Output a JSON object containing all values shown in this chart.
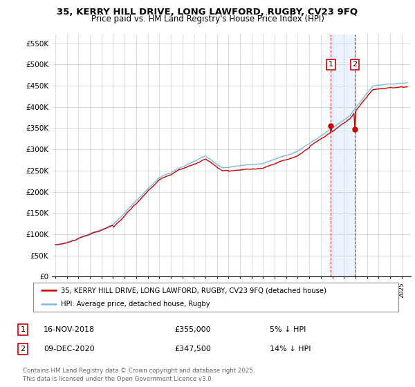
{
  "title_line1": "35, KERRY HILL DRIVE, LONG LAWFORD, RUGBY, CV23 9FQ",
  "title_line2": "Price paid vs. HM Land Registry's House Price Index (HPI)",
  "ylabel_ticks": [
    "£0",
    "£50K",
    "£100K",
    "£150K",
    "£200K",
    "£250K",
    "£300K",
    "£350K",
    "£400K",
    "£450K",
    "£500K",
    "£550K"
  ],
  "ytick_values": [
    0,
    50000,
    100000,
    150000,
    200000,
    250000,
    300000,
    350000,
    400000,
    450000,
    500000,
    550000
  ],
  "ylim": [
    0,
    570000
  ],
  "xlim_start": 1994.7,
  "xlim_end": 2025.8,
  "sale1_x": 2018.87,
  "sale1_y": 355000,
  "sale2_x": 2020.94,
  "sale2_y": 347500,
  "hpi_color": "#7ab8e8",
  "red_color": "#cc0000",
  "shade_color": "#ddeeff",
  "shade_alpha": 0.55,
  "legend_label1": "35, KERRY HILL DRIVE, LONG LAWFORD, RUGBY, CV23 9FQ (detached house)",
  "legend_label2": "HPI: Average price, detached house, Rugby",
  "annotation1_date": "16-NOV-2018",
  "annotation1_price": "£355,000",
  "annotation1_hpi": "5% ↓ HPI",
  "annotation2_date": "09-DEC-2020",
  "annotation2_price": "£347,500",
  "annotation2_hpi": "14% ↓ HPI",
  "footnote_line1": "Contains HM Land Registry data © Crown copyright and database right 2025.",
  "footnote_line2": "This data is licensed under the Open Government Licence v3.0.",
  "background_color": "#ffffff",
  "grid_color": "#cccccc"
}
